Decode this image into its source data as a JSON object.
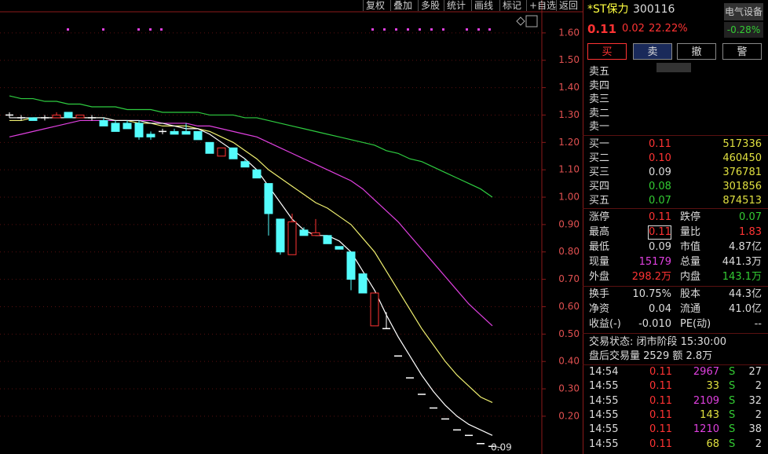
{
  "toolbar": [
    "复权",
    "叠加",
    "多股",
    "统计",
    "画线",
    "标记",
    "+自选",
    "返回"
  ],
  "chart_data": {
    "type": "candlestick",
    "ylim": [
      0.062,
      1.68
    ],
    "yticks": [
      {
        "value": 0.2,
        "label": "0.20"
      },
      {
        "value": 0.3,
        "label": "0.30"
      },
      {
        "value": 0.4,
        "label": "0.40"
      },
      {
        "value": 0.5,
        "label": "0.50"
      },
      {
        "value": 0.6,
        "label": "0.60"
      },
      {
        "value": 0.7,
        "label": "0.70"
      },
      {
        "value": 0.8,
        "label": "0.80"
      },
      {
        "value": 0.9,
        "label": "0.90"
      },
      {
        "value": 1.0,
        "label": "1.00"
      },
      {
        "value": 1.1,
        "label": "1.10"
      },
      {
        "value": 1.2,
        "label": "1.20"
      },
      {
        "value": 1.3,
        "label": "1.30"
      },
      {
        "value": 1.4,
        "label": "1.40"
      },
      {
        "value": 1.5,
        "label": "1.50"
      },
      {
        "value": 1.6,
        "label": "1.60"
      }
    ],
    "up_color": "#ff3333",
    "down_color": "#54fcfc",
    "flat_color": "#ffffff",
    "candles": [
      {
        "open": 1.3,
        "high": 1.31,
        "low": 1.29,
        "close": 1.3
      },
      {
        "open": 1.29,
        "high": 1.3,
        "low": 1.28,
        "close": 1.29
      },
      {
        "open": 1.29,
        "high": 1.29,
        "low": 1.28,
        "close": 1.28
      },
      {
        "open": 1.29,
        "high": 1.3,
        "low": 1.28,
        "close": 1.29
      },
      {
        "open": 1.29,
        "high": 1.31,
        "low": 1.29,
        "close": 1.3
      },
      {
        "open": 1.31,
        "high": 1.31,
        "low": 1.29,
        "close": 1.29
      },
      {
        "open": 1.29,
        "high": 1.3,
        "low": 1.29,
        "close": 1.3
      },
      {
        "open": 1.29,
        "high": 1.3,
        "low": 1.28,
        "close": 1.29
      },
      {
        "open": 1.28,
        "high": 1.29,
        "low": 1.26,
        "close": 1.26
      },
      {
        "open": 1.27,
        "high": 1.28,
        "low": 1.24,
        "close": 1.24
      },
      {
        "open": 1.27,
        "high": 1.28,
        "low": 1.25,
        "close": 1.25
      },
      {
        "open": 1.27,
        "high": 1.28,
        "low": 1.21,
        "close": 1.22
      },
      {
        "open": 1.23,
        "high": 1.24,
        "low": 1.21,
        "close": 1.22
      },
      {
        "open": 1.24,
        "high": 1.25,
        "low": 1.23,
        "close": 1.24
      },
      {
        "open": 1.24,
        "high": 1.25,
        "low": 1.23,
        "close": 1.23
      },
      {
        "open": 1.24,
        "high": 1.27,
        "low": 1.23,
        "close": 1.23
      },
      {
        "open": 1.24,
        "high": 1.24,
        "low": 1.21,
        "close": 1.21
      },
      {
        "open": 1.2,
        "high": 1.2,
        "low": 1.16,
        "close": 1.16
      },
      {
        "open": 1.15,
        "high": 1.18,
        "low": 1.15,
        "close": 1.18
      },
      {
        "open": 1.18,
        "high": 1.18,
        "low": 1.14,
        "close": 1.14
      },
      {
        "open": 1.13,
        "high": 1.14,
        "low": 1.11,
        "close": 1.11
      },
      {
        "open": 1.1,
        "high": 1.1,
        "low": 1.07,
        "close": 1.07
      },
      {
        "open": 1.05,
        "high": 1.05,
        "low": 0.86,
        "close": 0.94
      },
      {
        "open": 0.92,
        "high": 0.92,
        "low": 0.79,
        "close": 0.8
      },
      {
        "open": 0.79,
        "high": 0.94,
        "low": 0.79,
        "close": 0.91
      },
      {
        "open": 0.88,
        "high": 0.89,
        "low": 0.86,
        "close": 0.86
      },
      {
        "open": 0.86,
        "high": 0.92,
        "low": 0.86,
        "close": 0.87
      },
      {
        "open": 0.86,
        "high": 0.86,
        "low": 0.83,
        "close": 0.83
      },
      {
        "open": 0.82,
        "high": 0.82,
        "low": 0.81,
        "close": 0.81
      },
      {
        "open": 0.8,
        "high": 0.8,
        "low": 0.66,
        "close": 0.7
      },
      {
        "open": 0.72,
        "high": 0.72,
        "low": 0.65,
        "close": 0.65
      },
      {
        "open": 0.53,
        "high": 0.65,
        "low": 0.53,
        "close": 0.65
      },
      {
        "open": 0.52,
        "high": 0.58,
        "low": 0.52,
        "close": 0.52
      },
      {
        "open": 0.42,
        "high": 0.42,
        "low": 0.42,
        "close": 0.42
      },
      {
        "open": 0.34,
        "high": 0.34,
        "low": 0.34,
        "close": 0.34
      },
      {
        "open": 0.28,
        "high": 0.28,
        "low": 0.28,
        "close": 0.28
      },
      {
        "open": 0.23,
        "high": 0.23,
        "low": 0.23,
        "close": 0.23
      },
      {
        "open": 0.19,
        "high": 0.19,
        "low": 0.19,
        "close": 0.19
      },
      {
        "open": 0.15,
        "high": 0.15,
        "low": 0.15,
        "close": 0.15
      },
      {
        "open": 0.13,
        "high": 0.13,
        "low": 0.13,
        "close": 0.13
      },
      {
        "open": 0.1,
        "high": 0.1,
        "low": 0.1,
        "close": 0.1
      },
      {
        "open": 0.09,
        "high": 0.09,
        "low": 0.09,
        "close": 0.09
      }
    ],
    "lines": [
      {
        "color": "#2ecc40",
        "values": [
          1.37,
          1.36,
          1.36,
          1.35,
          1.35,
          1.34,
          1.34,
          1.33,
          1.33,
          1.33,
          1.32,
          1.32,
          1.32,
          1.31,
          1.31,
          1.31,
          1.31,
          1.3,
          1.3,
          1.3,
          1.29,
          1.29,
          1.28,
          1.27,
          1.26,
          1.25,
          1.24,
          1.23,
          1.22,
          1.21,
          1.2,
          1.19,
          1.17,
          1.16,
          1.14,
          1.13,
          1.11,
          1.09,
          1.07,
          1.05,
          1.03,
          1.0
        ]
      },
      {
        "color": "#e040e0",
        "values": [
          1.22,
          1.23,
          1.24,
          1.25,
          1.26,
          1.27,
          1.28,
          1.28,
          1.28,
          1.28,
          1.28,
          1.28,
          1.28,
          1.27,
          1.27,
          1.27,
          1.26,
          1.26,
          1.25,
          1.24,
          1.23,
          1.22,
          1.2,
          1.18,
          1.16,
          1.14,
          1.12,
          1.1,
          1.08,
          1.06,
          1.03,
          0.99,
          0.95,
          0.91,
          0.86,
          0.81,
          0.76,
          0.71,
          0.66,
          0.61,
          0.57,
          0.53
        ]
      },
      {
        "color": "#f0f070",
        "values": [
          1.28,
          1.28,
          1.29,
          1.29,
          1.29,
          1.29,
          1.29,
          1.29,
          1.29,
          1.28,
          1.28,
          1.27,
          1.27,
          1.26,
          1.26,
          1.26,
          1.25,
          1.24,
          1.22,
          1.2,
          1.17,
          1.14,
          1.1,
          1.07,
          1.04,
          1.01,
          0.98,
          0.96,
          0.93,
          0.9,
          0.85,
          0.8,
          0.73,
          0.66,
          0.59,
          0.52,
          0.46,
          0.4,
          0.35,
          0.31,
          0.27,
          0.25
        ]
      },
      {
        "color": "#ffffff",
        "values": [
          1.29,
          1.29,
          1.29,
          1.29,
          1.29,
          1.29,
          1.29,
          1.29,
          1.29,
          1.28,
          1.28,
          1.28,
          1.27,
          1.27,
          1.26,
          1.25,
          1.25,
          1.23,
          1.2,
          1.17,
          1.14,
          1.1,
          1.04,
          0.98,
          0.92,
          0.88,
          0.86,
          0.86,
          0.84,
          0.8,
          0.73,
          0.66,
          0.57,
          0.49,
          0.42,
          0.35,
          0.29,
          0.24,
          0.2,
          0.17,
          0.15,
          0.13
        ]
      }
    ],
    "min_label": {
      "value": 0.09,
      "label": "0.09"
    }
  },
  "quote": {
    "name": "*ST保力",
    "code": "300116",
    "sector": "电气设备",
    "sector_change": "-0.28%",
    "price": "0.11",
    "change": "0.02",
    "change_pct": "22.22%"
  },
  "buttons": [
    "买",
    "卖",
    "撤",
    "警"
  ],
  "asks": [
    "卖五",
    "卖四",
    "卖三",
    "卖二",
    "卖一"
  ],
  "bids": [
    [
      "买一",
      "0.11",
      "517336"
    ],
    [
      "买二",
      "0.10",
      "460450"
    ],
    [
      "买三",
      "0.09",
      "376781"
    ],
    [
      "买四",
      "0.08",
      "301856"
    ],
    [
      "买五",
      "0.07",
      "874513"
    ]
  ],
  "stats": [
    [
      "涨停",
      "0.11",
      "跌停",
      "0.07"
    ],
    [
      "最高",
      "0.11",
      "量比",
      "1.83"
    ],
    [
      "最低",
      "0.09",
      "市值",
      "4.87亿"
    ],
    [
      "现量",
      "15179",
      "总量",
      "441.3万"
    ],
    [
      "外盘",
      "298.2万",
      "内盘",
      "143.1万"
    ]
  ],
  "finance": [
    [
      "换手",
      "10.75%",
      "股本",
      "44.3亿"
    ],
    [
      "净资",
      "0.04",
      "流通",
      "41.0亿"
    ],
    [
      "收益(-)",
      "-0.010",
      "PE(动)",
      "--"
    ]
  ],
  "status": "交易状态: 闭市阶段 15:30:00",
  "after_hours": "盘后交易量 2529 额 2.8万",
  "trades": [
    [
      "14:54",
      "0.11",
      "2967",
      "S",
      "27"
    ],
    [
      "14:55",
      "0.11",
      "33",
      "S",
      "2"
    ],
    [
      "14:55",
      "0.11",
      "2109",
      "S",
      "32"
    ],
    [
      "14:55",
      "0.11",
      "143",
      "S",
      "2"
    ],
    [
      "14:55",
      "0.11",
      "1210",
      "S",
      "38"
    ],
    [
      "14:55",
      "0.11",
      "68",
      "S",
      "2"
    ]
  ]
}
